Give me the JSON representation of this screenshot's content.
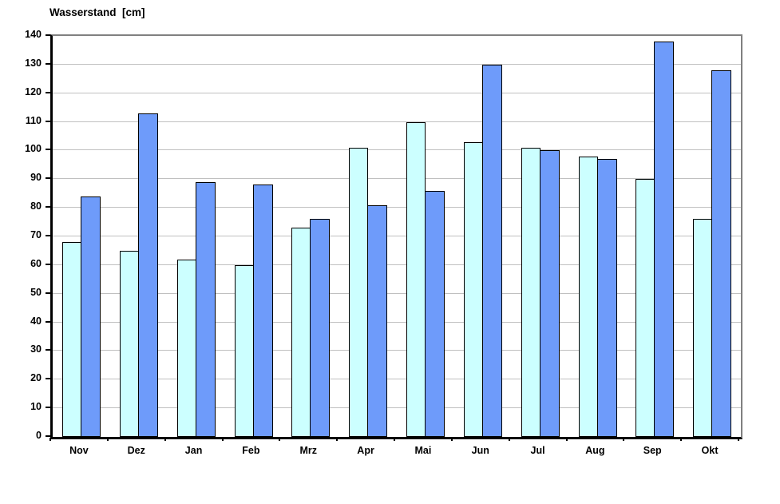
{
  "chart_data": {
    "type": "bar",
    "title": "Wasserstand  [cm]",
    "categories": [
      "Nov",
      "Dez",
      "Jan",
      "Feb",
      "Mrz",
      "Apr",
      "Mai",
      "Jun",
      "Jul",
      "Aug",
      "Sep",
      "Okt"
    ],
    "series": [
      {
        "name": "",
        "color": "#ccffff",
        "values": [
          68,
          65,
          62,
          60,
          73,
          101,
          110,
          103,
          101,
          98,
          90,
          76
        ]
      },
      {
        "name": "",
        "color": "#6e9bfa",
        "values": [
          84,
          113,
          89,
          88,
          76,
          81,
          86,
          130,
          100,
          97,
          138,
          128
        ]
      }
    ],
    "xlabel": "",
    "ylabel": "Wasserstand  [cm]",
    "ylim": [
      0,
      140
    ],
    "ytick_step": 10,
    "grid": true,
    "legend": false,
    "colors": {
      "gridline": "#c0c0c0",
      "plot_border": "#808080",
      "axis": "#000000",
      "background": "#ffffff"
    }
  }
}
